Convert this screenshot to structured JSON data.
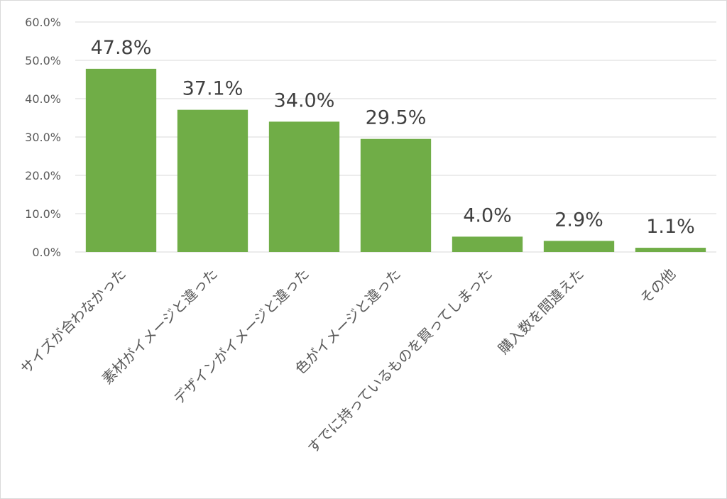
{
  "chart_data": {
    "type": "bar",
    "title": "",
    "xlabel": "",
    "ylabel": "",
    "categories": [
      "サイズが合わなかった",
      "素材がイメージと違った",
      "デザインがイメージと違った",
      "色がイメージと違った",
      "すでに持っているものを買ってしまった",
      "購入数を間違えた",
      "その他"
    ],
    "values": [
      47.8,
      37.1,
      34.0,
      29.5,
      4.0,
      2.9,
      1.1
    ],
    "data_labels": [
      "47.8%",
      "37.1%",
      "34.0%",
      "29.5%",
      "4.0%",
      "2.9%",
      "1.1%"
    ],
    "yticks": [
      0,
      10,
      20,
      30,
      40,
      50,
      60
    ],
    "ytick_labels": [
      "0.0%",
      "10.0%",
      "20.0%",
      "30.0%",
      "40.0%",
      "50.0%",
      "60.0%"
    ],
    "ylim": [
      0,
      60
    ],
    "grid": true,
    "legend": "none",
    "colors": {
      "bar": "#70ad47",
      "grid": "#d9d9d9",
      "axis": "#d9d9d9",
      "tick_text": "#595959",
      "data_label_text": "#404040"
    }
  }
}
